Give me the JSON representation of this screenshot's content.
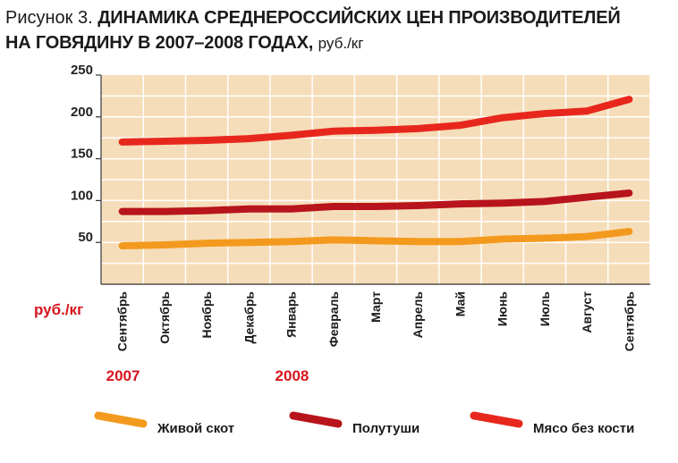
{
  "header": {
    "prefix": "Рисунок 3.",
    "title_line1": "ДИНАМИКА СРЕДНЕРОССИЙСКИХ ЦЕН ПРОИЗВОДИТЕЛЕЙ",
    "title_line2": "НА ГОВЯДИНУ В 2007–2008 ГОДАХ,",
    "unit": "руб./кг"
  },
  "chart_data": {
    "type": "line",
    "title": "ДИНАМИКА СРЕДНЕРОССИЙСКИХ ЦЕН ПРОИЗВОДИТЕЛЕЙ НА ГОВЯДИНУ В 2007–2008 ГОДАХ, руб./кг",
    "ylabel": "руб./кг",
    "xlabel": "",
    "ylim": [
      0,
      250
    ],
    "yticks": [
      50,
      100,
      150,
      200,
      250
    ],
    "grid": true,
    "legend_position": "bottom",
    "categories": [
      "Сентябрь",
      "Октябрь",
      "Ноябрь",
      "Декабрь",
      "Январь",
      "Февраль",
      "Март",
      "Апрель",
      "Май",
      "Июнь",
      "Июль",
      "Август",
      "Сентябрь"
    ],
    "year_labels": [
      {
        "label": "2007",
        "category_index": 0
      },
      {
        "label": "2008",
        "category_index": 4
      }
    ],
    "series": [
      {
        "name": "Живой скот",
        "color": "#f39a1e",
        "values": [
          46,
          47,
          49,
          50,
          51,
          53,
          52,
          51,
          51,
          54,
          55,
          57,
          63
        ]
      },
      {
        "name": "Полутуши",
        "color": "#b8141b",
        "values": [
          87,
          87,
          88,
          90,
          90,
          93,
          93,
          94,
          96,
          97,
          99,
          104,
          109
        ]
      },
      {
        "name": "Мясо без кости",
        "color": "#e8271c",
        "values": [
          170,
          171,
          172,
          174,
          178,
          183,
          184,
          186,
          190,
          199,
          204,
          207,
          221
        ]
      }
    ]
  }
}
